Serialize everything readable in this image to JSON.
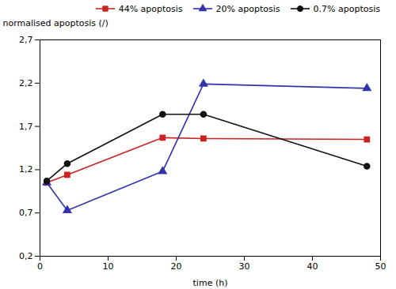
{
  "chart_data": {
    "type": "line",
    "series": [
      {
        "name": "44% apoptosis",
        "color": "#cc2222",
        "marker": "square",
        "x": [
          1,
          4,
          18,
          24,
          48
        ],
        "values": [
          1.05,
          1.14,
          1.57,
          1.56,
          1.55
        ]
      },
      {
        "name": "20% apoptosis",
        "color": "#3333aa",
        "marker": "triangle",
        "x": [
          1,
          4,
          18,
          24,
          48
        ],
        "values": [
          1.05,
          0.73,
          1.18,
          2.19,
          2.14
        ]
      },
      {
        "name": "0.7% apoptosis",
        "color": "#111111",
        "marker": "circle",
        "x": [
          1,
          4,
          18,
          24,
          48
        ],
        "values": [
          1.07,
          1.27,
          1.84,
          1.84,
          1.24
        ]
      }
    ],
    "xlabel": "time (h)",
    "ylabel": "normalised apoptosis (/)",
    "xlim": [
      0,
      50
    ],
    "ylim": [
      0.2,
      2.7
    ],
    "xticks": [
      0,
      10,
      20,
      30,
      40,
      50
    ],
    "yticks": [
      {
        "value": 0.2,
        "label": "0,2"
      },
      {
        "value": 0.7,
        "label": "0,7"
      },
      {
        "value": 1.2,
        "label": "1,2"
      },
      {
        "value": 1.7,
        "label": "1,7"
      },
      {
        "value": 2.2,
        "label": "2,2"
      },
      {
        "value": 2.7,
        "label": "2,7"
      }
    ],
    "legend": "upper right",
    "grid": false
  }
}
